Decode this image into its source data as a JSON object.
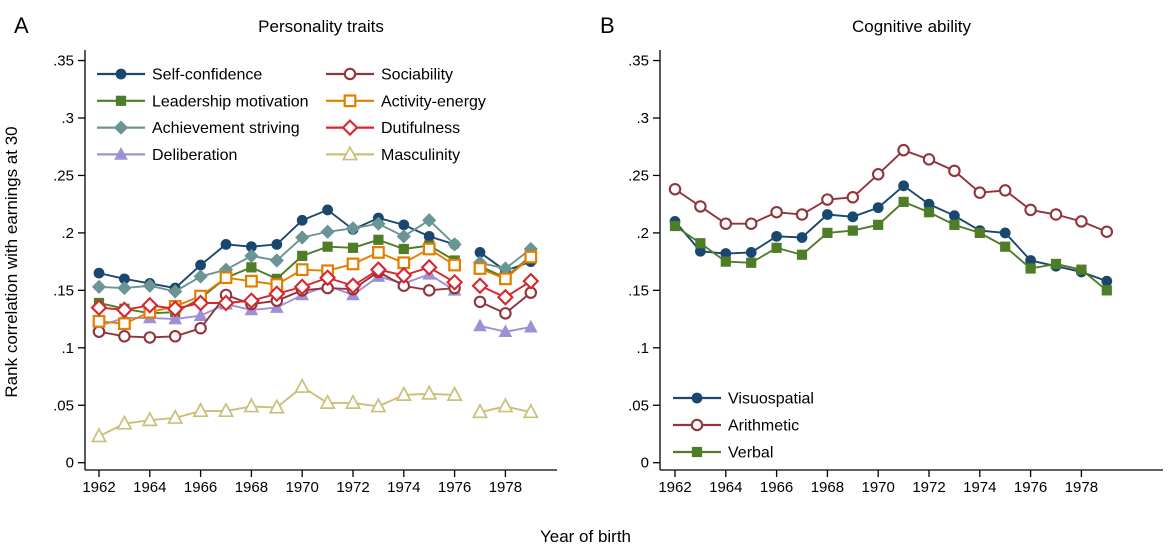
{
  "figure": {
    "xlabel": "Year of birth",
    "ylabel": "Rank correlation with earnings at 30",
    "background": "#ffffff",
    "axis_color": "#000000"
  },
  "chart_data": [
    {
      "type": "line",
      "panel_label": "A",
      "title": "Personality traits",
      "xlabel": "Year of birth",
      "ylabel": "Rank correlation with earnings at 30",
      "ylim": [
        0,
        0.35
      ],
      "grid": false,
      "legend_position": "top-inside-two-columns",
      "line_break_after": 1976,
      "x": [
        1962,
        1963,
        1964,
        1965,
        1966,
        1967,
        1968,
        1969,
        1970,
        1971,
        1972,
        1973,
        1974,
        1975,
        1976,
        1977,
        1978,
        1979
      ],
      "x_ticks": [
        1962,
        1964,
        1966,
        1968,
        1970,
        1972,
        1974,
        1976,
        1978
      ],
      "y_ticks": [
        {
          "v": 0.0,
          "label": "0"
        },
        {
          "v": 0.05,
          "label": ".05"
        },
        {
          "v": 0.1,
          "label": ".1"
        },
        {
          "v": 0.15,
          "label": ".15"
        },
        {
          "v": 0.2,
          "label": ".2"
        },
        {
          "v": 0.25,
          "label": ".25"
        },
        {
          "v": 0.3,
          "label": ".3"
        },
        {
          "v": 0.35,
          "label": ".35"
        }
      ],
      "series": [
        {
          "name": "Self-confidence",
          "marker": "circle",
          "filled": true,
          "color": "#1A476F",
          "legend_col": 1,
          "values": [
            0.165,
            0.16,
            0.156,
            0.152,
            0.172,
            0.19,
            0.188,
            0.19,
            0.211,
            0.22,
            0.203,
            0.213,
            0.207,
            0.197,
            0.19,
            0.183,
            0.167,
            0.175
          ]
        },
        {
          "name": "Leadership motivation",
          "marker": "square",
          "filled": true,
          "color": "#4E7D27",
          "legend_col": 1,
          "values": [
            0.139,
            0.134,
            0.13,
            0.131,
            0.143,
            0.161,
            0.17,
            0.16,
            0.18,
            0.188,
            0.187,
            0.194,
            0.186,
            0.189,
            0.176,
            0.171,
            0.161,
            0.18
          ]
        },
        {
          "name": "Achievement striving",
          "marker": "diamond",
          "filled": true,
          "color": "#6B9494",
          "legend_col": 1,
          "values": [
            0.153,
            0.152,
            0.154,
            0.149,
            0.162,
            0.168,
            0.18,
            0.176,
            0.196,
            0.201,
            0.204,
            0.208,
            0.197,
            0.211,
            0.19,
            0.174,
            0.169,
            0.186
          ]
        },
        {
          "name": "Deliberation",
          "marker": "triangle",
          "filled": true,
          "color": "#9F8FD4",
          "legend_col": 1,
          "values": [
            0.119,
            0.126,
            0.126,
            0.125,
            0.128,
            0.138,
            0.133,
            0.135,
            0.146,
            0.154,
            0.146,
            0.162,
            0.156,
            0.164,
            0.15,
            0.119,
            0.114,
            0.118
          ]
        },
        {
          "name": "Sociability",
          "marker": "circle",
          "filled": false,
          "color": "#90353B",
          "legend_col": 2,
          "values": [
            0.114,
            0.11,
            0.109,
            0.11,
            0.117,
            0.146,
            0.138,
            0.141,
            0.15,
            0.152,
            0.151,
            0.166,
            0.154,
            0.15,
            0.152,
            0.14,
            0.13,
            0.148
          ]
        },
        {
          "name": "Activity-energy",
          "marker": "square",
          "filled": false,
          "color": "#E37E00",
          "legend_col": 2,
          "values": [
            0.123,
            0.121,
            0.131,
            0.136,
            0.145,
            0.161,
            0.158,
            0.155,
            0.168,
            0.167,
            0.173,
            0.183,
            0.174,
            0.186,
            0.172,
            0.169,
            0.16,
            0.179
          ]
        },
        {
          "name": "Dutifulness",
          "marker": "diamond",
          "filled": false,
          "color": "#D7262F",
          "legend_col": 2,
          "values": [
            0.135,
            0.133,
            0.137,
            0.134,
            0.139,
            0.139,
            0.141,
            0.147,
            0.153,
            0.161,
            0.154,
            0.168,
            0.163,
            0.17,
            0.157,
            0.154,
            0.144,
            0.158
          ]
        },
        {
          "name": "Masculinity",
          "marker": "triangle",
          "filled": false,
          "color": "#CBBF7A",
          "legend_col": 2,
          "values": [
            0.023,
            0.034,
            0.037,
            0.039,
            0.045,
            0.045,
            0.049,
            0.048,
            0.066,
            0.052,
            0.052,
            0.049,
            0.059,
            0.06,
            0.059,
            0.044,
            0.049,
            0.044
          ]
        }
      ]
    },
    {
      "type": "line",
      "panel_label": "B",
      "title": "Cognitive ability",
      "xlabel": "Year of birth",
      "ylabel": "Rank correlation with earnings at 30",
      "ylim": [
        0,
        0.35
      ],
      "grid": false,
      "legend_position": "bottom-left-inside",
      "line_break_after": null,
      "x": [
        1962,
        1963,
        1964,
        1965,
        1966,
        1967,
        1968,
        1969,
        1970,
        1971,
        1972,
        1973,
        1974,
        1975,
        1976,
        1977,
        1978,
        1979
      ],
      "x_ticks": [
        1962,
        1964,
        1966,
        1968,
        1970,
        1972,
        1974,
        1976,
        1978
      ],
      "y_ticks": [
        {
          "v": 0.0,
          "label": "0"
        },
        {
          "v": 0.05,
          "label": ".05"
        },
        {
          "v": 0.1,
          "label": ".1"
        },
        {
          "v": 0.15,
          "label": ".15"
        },
        {
          "v": 0.2,
          "label": ".2"
        },
        {
          "v": 0.25,
          "label": ".25"
        },
        {
          "v": 0.3,
          "label": ".3"
        },
        {
          "v": 0.35,
          "label": ".35"
        }
      ],
      "series": [
        {
          "name": "Visuospatial",
          "marker": "circle",
          "filled": true,
          "color": "#1A476F",
          "legend_col": 1,
          "values": [
            0.21,
            0.184,
            0.182,
            0.183,
            0.197,
            0.196,
            0.216,
            0.214,
            0.222,
            0.241,
            0.225,
            0.215,
            0.202,
            0.2,
            0.176,
            0.171,
            0.166,
            0.158
          ]
        },
        {
          "name": "Arithmetic",
          "marker": "circle",
          "filled": false,
          "color": "#90353B",
          "legend_col": 1,
          "values": [
            0.238,
            0.223,
            0.208,
            0.208,
            0.218,
            0.216,
            0.229,
            0.231,
            0.251,
            0.272,
            0.264,
            0.254,
            0.235,
            0.237,
            0.22,
            0.216,
            0.21,
            0.201
          ]
        },
        {
          "name": "Verbal",
          "marker": "square",
          "filled": true,
          "color": "#4E7D27",
          "legend_col": 1,
          "values": [
            0.206,
            0.191,
            0.175,
            0.174,
            0.187,
            0.181,
            0.2,
            0.202,
            0.207,
            0.227,
            0.218,
            0.207,
            0.2,
            0.188,
            0.169,
            0.173,
            0.168,
            0.15
          ]
        }
      ]
    }
  ]
}
